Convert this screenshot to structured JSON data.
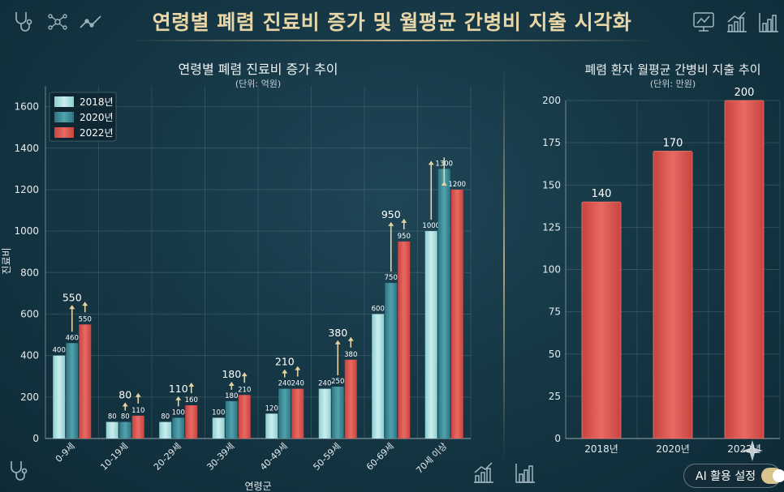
{
  "page": {
    "title": "연령별 폐렴 진료비 증가 및 월평균 간병비 지출 시각화",
    "ai_button_label": "AI 활용 설정"
  },
  "icons": {
    "top_left": [
      "stethoscope-icon",
      "network-icon",
      "trend-line-icon"
    ],
    "top_right": [
      "monitor-chart-icon",
      "growth-bars-icon",
      "bar-chart-icon"
    ],
    "bottom": [
      "stethoscope-icon",
      "growth-bars-icon",
      "bar-chart-icon"
    ],
    "accent": "#e9d6a6"
  },
  "colors": {
    "s2018": "#a9dfe0",
    "s2020": "#3f8c99",
    "s2022": "#d9534f",
    "arrow": "#e6d3a0"
  },
  "chart_data": [
    {
      "type": "bar",
      "title": "연령별 폐렴 진료비 증가 추이",
      "subtitle": "(단위: 억원)",
      "xlabel": "연령군",
      "ylabel": "진료비",
      "categories": [
        "0-9세",
        "10-19세",
        "20-29세",
        "30-39세",
        "40-49세",
        "50-59세",
        "60-69세",
        "70세 이상"
      ],
      "series": [
        {
          "name": "2018년",
          "values": [
            400,
            80,
            80,
            100,
            120,
            240,
            600,
            1000
          ]
        },
        {
          "name": "2020년",
          "values": [
            460,
            80,
            100,
            180,
            240,
            250,
            750,
            1300
          ]
        },
        {
          "name": "2022년",
          "values": [
            550,
            110,
            160,
            210,
            240,
            380,
            950,
            1200
          ]
        }
      ],
      "highlight_values": [
        550,
        80,
        110,
        180,
        210,
        380,
        950,
        null
      ],
      "ylim": [
        0,
        1700
      ],
      "yticks": [
        0,
        200,
        400,
        600,
        800,
        1000,
        1200,
        1400,
        1600
      ],
      "grid": true,
      "legend_position": "top-left"
    },
    {
      "type": "bar",
      "title": "폐렴 환자 월평균 간병비 지출 추이",
      "subtitle": "(단위: 만원)",
      "categories": [
        "2018년",
        "2020년",
        "2022년"
      ],
      "values": [
        140,
        170,
        200
      ],
      "ylim": [
        0,
        200
      ],
      "yticks": [
        0,
        25,
        50,
        75,
        100,
        125,
        150,
        175,
        200
      ],
      "grid": true
    }
  ]
}
